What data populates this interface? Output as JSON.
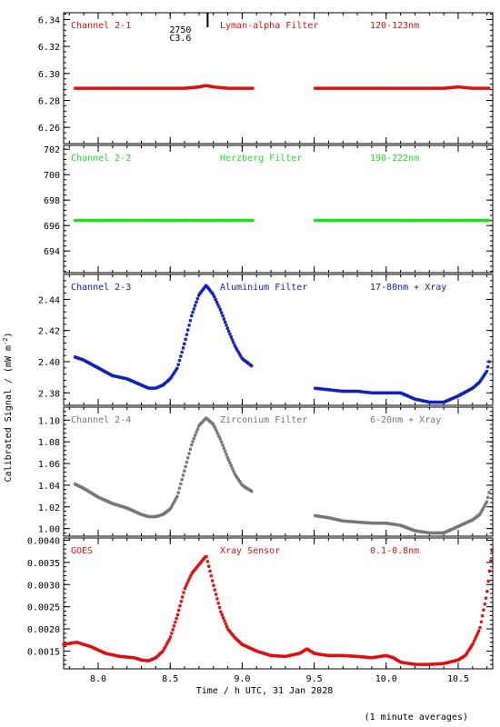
{
  "xlabel": "Time / h UTC, 31 Jan 2028",
  "ylabel_main": "Calibrated Signal / (mW m",
  "ylabel_exp": "-2",
  "ylabel_close": ")",
  "footnote": "(1 minute averages)",
  "flare_marker": {
    "x": 8.76,
    "line1": "2750",
    "line2": "C3.6"
  },
  "chart_data": {
    "type": "scatter",
    "xlim": [
      7.76,
      10.74
    ],
    "xticks": [
      8.0,
      8.5,
      9.0,
      9.5,
      10.0,
      10.5
    ],
    "xtick_labels": [
      "8.0",
      "8.5",
      "9.0",
      "9.5",
      "10.0",
      "10.5"
    ],
    "panels": [
      {
        "id": "ch21",
        "color": "#dd1111",
        "label": "Channel 2-1",
        "filter": "Lyman-alpha Filter",
        "band": "120-123nm",
        "ylim": [
          6.248,
          6.345
        ],
        "yticks": [
          6.26,
          6.28,
          6.3,
          6.32,
          6.34
        ],
        "ytick_labels": [
          "6.26",
          "6.28",
          "6.30",
          "6.32",
          "6.34"
        ],
        "x": [
          7.84,
          8.0,
          8.2,
          8.4,
          8.6,
          8.7,
          8.75,
          8.8,
          8.9,
          9.0,
          9.08,
          9.5,
          9.7,
          10.0,
          10.2,
          10.4,
          10.5,
          10.6,
          10.72
        ],
        "y": [
          6.289,
          6.289,
          6.289,
          6.289,
          6.289,
          6.29,
          6.291,
          6.29,
          6.289,
          6.289,
          6.289,
          6.289,
          6.289,
          6.289,
          6.289,
          6.289,
          6.29,
          6.289,
          6.289
        ],
        "gaps": [
          9.08
        ]
      },
      {
        "id": "ch22",
        "color": "#22dd22",
        "label": "Channel 2-2",
        "filter": "Herzberg Filter",
        "band": "190-222nm",
        "ylim": [
          692.3,
          702.3
        ],
        "yticks": [
          694,
          696,
          698,
          700,
          702
        ],
        "ytick_labels": [
          "694",
          "696",
          "698",
          "700",
          "702"
        ],
        "x": [
          7.84,
          8.2,
          8.6,
          8.8,
          9.08,
          9.5,
          9.8,
          10.2,
          10.72
        ],
        "y": [
          696.4,
          696.4,
          696.4,
          696.4,
          696.4,
          696.4,
          696.4,
          696.4,
          696.4
        ],
        "gaps": [
          9.08
        ]
      },
      {
        "id": "ch23",
        "color": "#1122bb",
        "label": "Channel 2-3",
        "filter": "Aluminium Filter",
        "band": "17-80nm + Xray",
        "ylim": [
          2.372,
          2.456
        ],
        "yticks": [
          2.38,
          2.4,
          2.42,
          2.44
        ],
        "ytick_labels": [
          "2.38",
          "2.40",
          "2.42",
          "2.44"
        ],
        "x": [
          7.84,
          7.9,
          8.0,
          8.1,
          8.2,
          8.3,
          8.35,
          8.4,
          8.45,
          8.5,
          8.55,
          8.6,
          8.65,
          8.7,
          8.75,
          8.8,
          8.85,
          8.9,
          8.95,
          9.0,
          9.07,
          9.5,
          9.6,
          9.7,
          9.8,
          9.9,
          10.0,
          10.1,
          10.2,
          10.3,
          10.4,
          10.5,
          10.6,
          10.65,
          10.7,
          10.72
        ],
        "y": [
          2.403,
          2.401,
          2.396,
          2.391,
          2.389,
          2.385,
          2.383,
          2.383,
          2.385,
          2.389,
          2.396,
          2.412,
          2.43,
          2.443,
          2.449,
          2.443,
          2.433,
          2.421,
          2.41,
          2.402,
          2.397,
          2.383,
          2.382,
          2.381,
          2.381,
          2.38,
          2.38,
          2.38,
          2.376,
          2.374,
          2.374,
          2.378,
          2.383,
          2.387,
          2.394,
          2.402
        ],
        "gaps": [
          9.07
        ]
      },
      {
        "id": "ch24",
        "color": "#777777",
        "label": "Channel 2-4",
        "filter": "Zirconium Filter",
        "band": "6-20nm + Xray",
        "ylim": [
          0.993,
          1.112
        ],
        "yticks": [
          1.0,
          1.02,
          1.04,
          1.06,
          1.08,
          1.1
        ],
        "ytick_labels": [
          "1.00",
          "1.02",
          "1.04",
          "1.06",
          "1.08",
          "1.10"
        ],
        "x": [
          7.84,
          7.9,
          8.0,
          8.1,
          8.2,
          8.3,
          8.35,
          8.4,
          8.45,
          8.5,
          8.55,
          8.6,
          8.65,
          8.7,
          8.75,
          8.8,
          8.85,
          8.9,
          8.95,
          9.0,
          9.07,
          9.5,
          9.6,
          9.7,
          9.8,
          9.9,
          10.0,
          10.1,
          10.2,
          10.3,
          10.4,
          10.5,
          10.6,
          10.65,
          10.7,
          10.72
        ],
        "y": [
          1.041,
          1.037,
          1.029,
          1.023,
          1.019,
          1.013,
          1.011,
          1.011,
          1.013,
          1.018,
          1.03,
          1.054,
          1.078,
          1.095,
          1.102,
          1.096,
          1.082,
          1.065,
          1.05,
          1.04,
          1.034,
          1.012,
          1.01,
          1.007,
          1.006,
          1.005,
          1.005,
          1.003,
          0.998,
          0.996,
          0.996,
          1.002,
          1.008,
          1.013,
          1.025,
          1.036
        ],
        "gaps": [
          9.07
        ]
      },
      {
        "id": "goes",
        "color": "#dd1111",
        "label": "GOES",
        "filter": "Xray Sensor",
        "band": "0.1-0.8nm",
        "ylim": [
          0.0011,
          0.00405
        ],
        "yticks": [
          0.0015,
          0.002,
          0.0025,
          0.003,
          0.0035,
          0.004
        ],
        "ytick_labels": [
          "0.0015",
          "0.0020",
          "0.0025",
          "0.0030",
          "0.0035",
          "0.0040"
        ],
        "x": [
          7.76,
          7.85,
          7.95,
          8.05,
          8.15,
          8.25,
          8.3,
          8.35,
          8.4,
          8.45,
          8.5,
          8.55,
          8.6,
          8.65,
          8.7,
          8.75,
          8.8,
          8.85,
          8.9,
          8.95,
          9.0,
          9.1,
          9.2,
          9.3,
          9.4,
          9.45,
          9.5,
          9.55,
          9.6,
          9.7,
          9.8,
          9.9,
          10.0,
          10.05,
          10.1,
          10.2,
          10.3,
          10.4,
          10.5,
          10.55,
          10.6,
          10.65,
          10.7,
          10.74
        ],
        "y": [
          0.00165,
          0.0017,
          0.0016,
          0.00145,
          0.00138,
          0.00135,
          0.0013,
          0.00128,
          0.00135,
          0.0015,
          0.0018,
          0.0023,
          0.0029,
          0.00325,
          0.00345,
          0.00365,
          0.003,
          0.0024,
          0.002,
          0.0018,
          0.00165,
          0.0015,
          0.0014,
          0.00138,
          0.00145,
          0.00155,
          0.00145,
          0.00142,
          0.0014,
          0.0014,
          0.00138,
          0.00135,
          0.0014,
          0.00135,
          0.00125,
          0.0012,
          0.0012,
          0.00122,
          0.0013,
          0.0014,
          0.00165,
          0.002,
          0.0028,
          0.0039
        ],
        "gaps": []
      }
    ]
  }
}
